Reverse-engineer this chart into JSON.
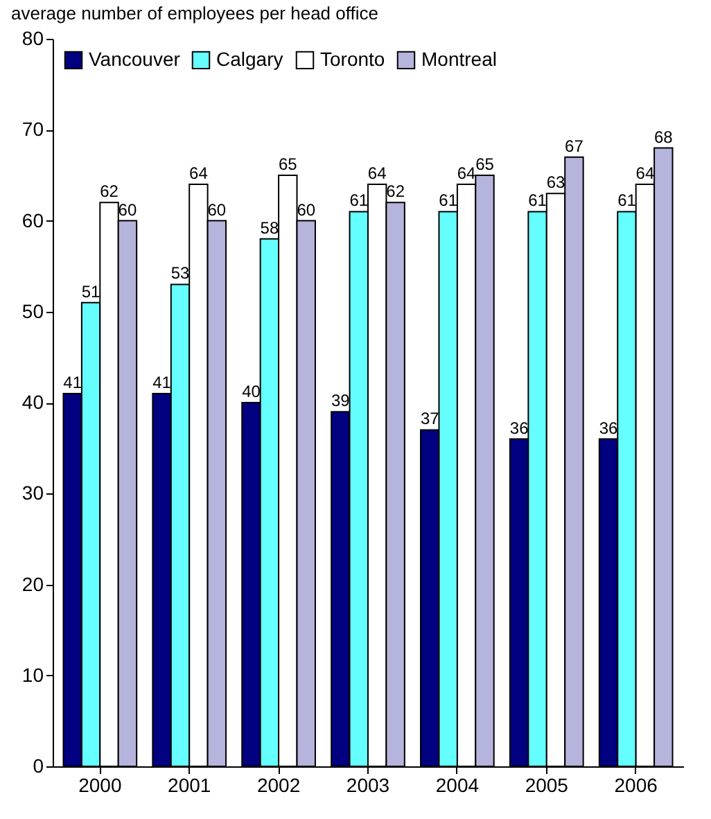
{
  "chart_data": {
    "type": "bar",
    "title": "average number of employees per head office",
    "categories": [
      "2000",
      "2001",
      "2002",
      "2003",
      "2004",
      "2005",
      "2006"
    ],
    "series": [
      {
        "name": "Vancouver",
        "color": "#000080",
        "values": [
          41,
          41,
          40,
          39,
          37,
          36,
          36
        ]
      },
      {
        "name": "Calgary",
        "color": "#66ffff",
        "values": [
          51,
          53,
          58,
          61,
          61,
          61,
          61
        ]
      },
      {
        "name": "Toronto",
        "color": "#ffffff",
        "values": [
          62,
          64,
          65,
          64,
          64,
          63,
          64
        ]
      },
      {
        "name": "Montreal",
        "color": "#b4b4dc",
        "values": [
          60,
          60,
          60,
          62,
          65,
          67,
          68
        ]
      }
    ],
    "ylim": [
      0,
      80
    ],
    "yticks": [
      0,
      10,
      20,
      30,
      40,
      50,
      60,
      70,
      80
    ],
    "grid": false,
    "legend": "top left",
    "data_labels": true
  }
}
